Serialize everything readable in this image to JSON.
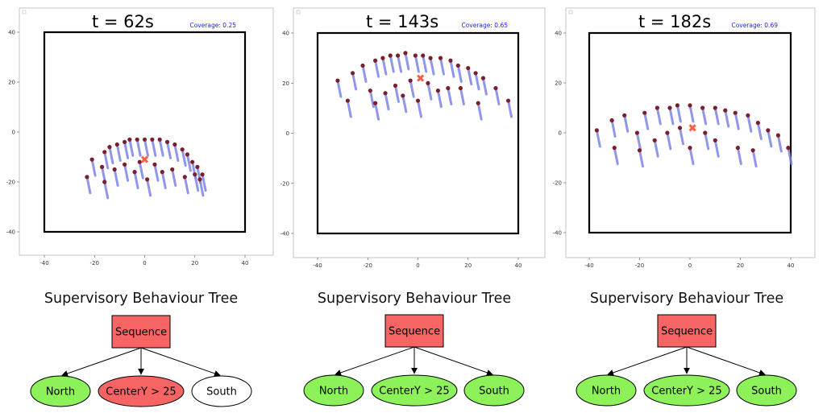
{
  "colors": {
    "trail": "#7d85e8",
    "agent": "#7a1f2b",
    "centroid": "#ff5f4a",
    "coverage_text": "#1f1fff",
    "node_success": "#8df15a",
    "node_failure": "#f76464",
    "node_idle": "#ffffff",
    "sequence_fill": "#f76464"
  },
  "chart_data": [
    {
      "type": "scatter",
      "title": "t = 62s",
      "coverage_label": "Coverage: 0.25",
      "xlim": [
        -40,
        40
      ],
      "ylim": [
        -40,
        40
      ],
      "x_ticks": [
        -40,
        -20,
        0,
        20,
        40
      ],
      "y_ticks": [
        40,
        20,
        0,
        -20,
        -40
      ],
      "boundary": [
        -40,
        40,
        -40,
        40
      ],
      "centroid": [
        0,
        -11
      ],
      "agents": [
        {
          "x": -23,
          "y": -18
        },
        {
          "x": -21,
          "y": -11
        },
        {
          "x": -17,
          "y": -14
        },
        {
          "x": -16,
          "y": -8
        },
        {
          "x": -16,
          "y": -20
        },
        {
          "x": -14,
          "y": -6
        },
        {
          "x": -12,
          "y": -15
        },
        {
          "x": -11,
          "y": -5
        },
        {
          "x": -8,
          "y": -4
        },
        {
          "x": -8,
          "y": -13
        },
        {
          "x": -6,
          "y": -3
        },
        {
          "x": -4,
          "y": -16
        },
        {
          "x": -3,
          "y": -3
        },
        {
          "x": -2,
          "y": -12
        },
        {
          "x": 0,
          "y": -3
        },
        {
          "x": 1,
          "y": -19
        },
        {
          "x": 3,
          "y": -3
        },
        {
          "x": 4,
          "y": -13
        },
        {
          "x": 6,
          "y": -3
        },
        {
          "x": 7,
          "y": -16
        },
        {
          "x": 9,
          "y": -4
        },
        {
          "x": 11,
          "y": -15
        },
        {
          "x": 12,
          "y": -5
        },
        {
          "x": 15,
          "y": -7
        },
        {
          "x": 16,
          "y": -18
        },
        {
          "x": 17,
          "y": -9
        },
        {
          "x": 19,
          "y": -12
        },
        {
          "x": 20,
          "y": -17
        },
        {
          "x": 21,
          "y": -14
        },
        {
          "x": 22,
          "y": -19
        },
        {
          "x": 23,
          "y": -17
        }
      ]
    },
    {
      "type": "scatter",
      "title": "t = 143s",
      "coverage_label": "Coverage: 0.65",
      "xlim": [
        -40,
        40
      ],
      "ylim": [
        -40,
        40
      ],
      "x_ticks": [
        -40,
        -20,
        0,
        20,
        40
      ],
      "y_ticks": [
        40,
        20,
        0,
        -20,
        -40
      ],
      "boundary": [
        -40,
        40,
        -40,
        40
      ],
      "centroid": [
        1,
        22
      ],
      "agents": [
        {
          "x": -32,
          "y": 21
        },
        {
          "x": -28,
          "y": 13
        },
        {
          "x": -26,
          "y": 24
        },
        {
          "x": -22,
          "y": 27
        },
        {
          "x": -19,
          "y": 17
        },
        {
          "x": -17,
          "y": 29
        },
        {
          "x": -17,
          "y": 12
        },
        {
          "x": -14,
          "y": 30
        },
        {
          "x": -13,
          "y": 16
        },
        {
          "x": -11,
          "y": 31
        },
        {
          "x": -9,
          "y": 19
        },
        {
          "x": -8,
          "y": 31
        },
        {
          "x": -6,
          "y": 15
        },
        {
          "x": -5,
          "y": 32
        },
        {
          "x": -3,
          "y": 21
        },
        {
          "x": -1,
          "y": 31
        },
        {
          "x": 0,
          "y": 13
        },
        {
          "x": 2,
          "y": 31
        },
        {
          "x": 4,
          "y": 20
        },
        {
          "x": 5,
          "y": 30
        },
        {
          "x": 8,
          "y": 17
        },
        {
          "x": 9,
          "y": 30
        },
        {
          "x": 12,
          "y": 18
        },
        {
          "x": 13,
          "y": 29
        },
        {
          "x": 16,
          "y": 27
        },
        {
          "x": 17,
          "y": 18
        },
        {
          "x": 20,
          "y": 26
        },
        {
          "x": 23,
          "y": 24
        },
        {
          "x": 24,
          "y": 12
        },
        {
          "x": 26,
          "y": 22
        },
        {
          "x": 31,
          "y": 18
        },
        {
          "x": 36,
          "y": 13
        }
      ]
    },
    {
      "type": "scatter",
      "title": "t = 182s",
      "coverage_label": "Coverage: 0.69",
      "xlim": [
        -40,
        40
      ],
      "ylim": [
        -40,
        40
      ],
      "x_ticks": [
        -40,
        -20,
        0,
        20,
        40
      ],
      "y_ticks": [
        40,
        20,
        0,
        -20,
        -40
      ],
      "boundary": [
        -40,
        40,
        -40,
        40
      ],
      "centroid": [
        1,
        2
      ],
      "agents": [
        {
          "x": -37,
          "y": 1
        },
        {
          "x": -31,
          "y": 5
        },
        {
          "x": -30,
          "y": -6
        },
        {
          "x": -26,
          "y": 7
        },
        {
          "x": -21,
          "y": 0
        },
        {
          "x": -20,
          "y": -7
        },
        {
          "x": -18,
          "y": 8
        },
        {
          "x": -14,
          "y": -3
        },
        {
          "x": -13,
          "y": 10
        },
        {
          "x": -9,
          "y": 0
        },
        {
          "x": -8,
          "y": 10
        },
        {
          "x": -5,
          "y": 11
        },
        {
          "x": -4,
          "y": 2
        },
        {
          "x": 0,
          "y": 11
        },
        {
          "x": 0,
          "y": -6
        },
        {
          "x": 5,
          "y": 10
        },
        {
          "x": 6,
          "y": 0
        },
        {
          "x": 10,
          "y": 10
        },
        {
          "x": 10,
          "y": -3
        },
        {
          "x": 14,
          "y": 9
        },
        {
          "x": 18,
          "y": 8
        },
        {
          "x": 19,
          "y": -6
        },
        {
          "x": 23,
          "y": 7
        },
        {
          "x": 25,
          "y": -7
        },
        {
          "x": 27,
          "y": 4
        },
        {
          "x": 31,
          "y": 1
        },
        {
          "x": 35,
          "y": -1
        },
        {
          "x": 39,
          "y": -6
        }
      ]
    }
  ],
  "trees": [
    {
      "title": "Supervisory Behaviour Tree",
      "root": {
        "label": "Sequence",
        "status": "failure"
      },
      "children": [
        {
          "label": "North",
          "status": "success"
        },
        {
          "label": "CenterY > 25",
          "status": "failure"
        },
        {
          "label": "South",
          "status": "idle"
        }
      ]
    },
    {
      "title": "Supervisory Behaviour Tree",
      "root": {
        "label": "Sequence",
        "status": "failure"
      },
      "children": [
        {
          "label": "North",
          "status": "success"
        },
        {
          "label": "CenterY > 25",
          "status": "success"
        },
        {
          "label": "South",
          "status": "success"
        }
      ]
    },
    {
      "title": "Supervisory Behaviour Tree",
      "root": {
        "label": "Sequence",
        "status": "failure"
      },
      "children": [
        {
          "label": "North",
          "status": "success"
        },
        {
          "label": "CenterY > 25",
          "status": "success"
        },
        {
          "label": "South",
          "status": "success"
        }
      ]
    }
  ]
}
